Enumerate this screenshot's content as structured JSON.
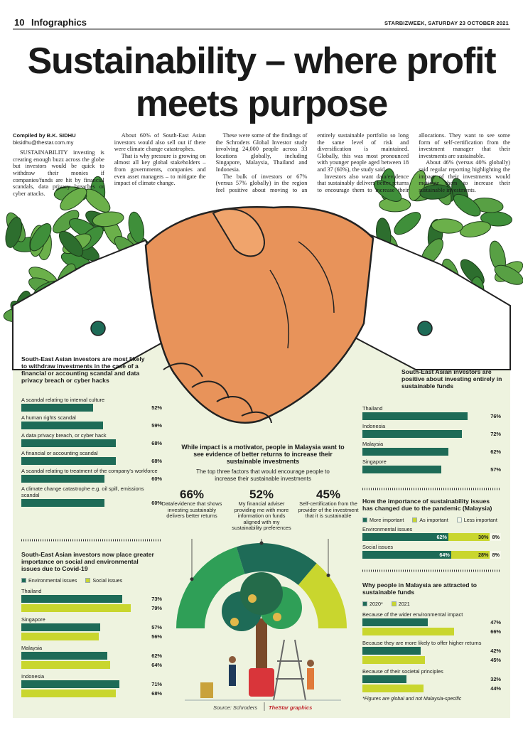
{
  "header": {
    "page": 10,
    "section": "Infographics",
    "dateline": "STARBIZWEEK, SATURDAY 23 OCTOBER 2021"
  },
  "headline": "Sustainability – where profit meets purpose",
  "byline": {
    "author": "Compiled by B.K. SIDHU",
    "email": "bksidhu@thestar.com.my"
  },
  "body": [
    "SUSTAINABILITY investing is creating enough buzz across the globe but investors would be quick to withdraw their monies if companies/funds are hit by financial scandals, data privacy breaches or cyber attacks.",
    "About 60% of South-East Asian investors would also sell out if there were climate change catastrophes.",
    "That is why pressure is growing on almost all key global stakeholders – from governments, companies and even asset managers – to mitigate the impact of climate change.",
    "These were some of the findings of the Schroders Global Investor study involving 24,000 people across 33 locations globally, including Singapore, Malaysia, Thailand and Indonesia.",
    "The bulk of investors or 67% (versus 57% globally) in the region feel positive about moving to an entirely sustainable portfolio so long the same level of risk and diversification is maintained. Globally, this was most pronounced with younger people aged between 18 and 37 (60%), the study said.",
    "Investors also want data/evidence that sustainably delivers better returns to encourage them to increase their allocations. They want to see some form of self-certification from the investment manager that their investments are sustainable.",
    "About 46% (versus 40% globally) said regular reporting highlighting the impact of their investments would motivate them to increase their sustainable investments."
  ],
  "chart_data": [
    {
      "type": "bar",
      "title": "South-East Asian investors are most likely to withdraw investments in the case of a financial or accounting scandal and data privacy breach or cyber hacks",
      "categories": [
        "A scandal relating to internal culture",
        "A human rights scandal",
        "A data privacy breach, or cyber hack",
        "A financial or accounting scandal",
        "A scandal relating to treatment of the company's workforce",
        "A climate change catastrophe e.g. oil spill, emissions scandal"
      ],
      "values": [
        52,
        59,
        68,
        68,
        60,
        60
      ],
      "value_labels": [
        "52%",
        "59%",
        "68%",
        "68%",
        "60%",
        "60%"
      ],
      "color": "#1e6b57"
    },
    {
      "type": "bar",
      "title": "South-East Asian investors now place greater importance on social and environmental issues due to Covid-19",
      "categories": [
        "Thailand",
        "Singapore",
        "Malaysia",
        "Indonesia"
      ],
      "series": [
        {
          "name": "Environmental issues",
          "color": "#1e6b57",
          "values": [
            73,
            57,
            62,
            71
          ],
          "value_labels": [
            "73%",
            "57%",
            "62%",
            "71%"
          ]
        },
        {
          "name": "Social issues",
          "color": "#c9d62e",
          "values": [
            79,
            56,
            64,
            68
          ],
          "value_labels": [
            "79%",
            "56%",
            "64%",
            "68%"
          ]
        }
      ]
    },
    {
      "type": "gauge",
      "title": "While impact is a motivator, people in Malaysia want to see evidence of better returns to increase their sustainable investments",
      "subtitle": "The top three factors that would encourage people to increase their sustainable investments",
      "categories": [
        "Data/evidence that shows investing sustainably delivers better returns",
        "My financial adviser providing me with more information on funds aligned with my sustainability preferences",
        "Self-certification from the provider of the investment that it is sustainable"
      ],
      "values": [
        66,
        52,
        45
      ],
      "value_labels": [
        "66%",
        "52%",
        "45%"
      ],
      "colors": [
        "#2f9f57",
        "#1e6b57",
        "#c9d62e"
      ]
    },
    {
      "type": "bar",
      "title": "South-East Asian investors are positive about investing entirely in sustainable funds",
      "categories": [
        "Thailand",
        "Indonesia",
        "Malaysia",
        "Singapore"
      ],
      "values": [
        76,
        72,
        62,
        57
      ],
      "value_labels": [
        "76%",
        "72%",
        "62%",
        "57%"
      ],
      "color": "#1e6b57"
    },
    {
      "type": "stacked-bar",
      "title": "How the importance of sustainability issues has changed due to the pandemic (Malaysia)",
      "categories": [
        "Environmental issues",
        "Social issues"
      ],
      "series": [
        {
          "name": "More important",
          "color": "#1e6b57",
          "values": [
            62,
            64
          ],
          "value_labels": [
            "62%",
            "64%"
          ]
        },
        {
          "name": "As important",
          "color": "#c9d62e",
          "values": [
            30,
            28
          ],
          "value_labels": [
            "30%",
            "28%"
          ]
        },
        {
          "name": "Less important",
          "color": "#f6f8ea",
          "values": [
            8,
            8
          ],
          "value_labels": [
            "8%",
            "8%"
          ]
        }
      ]
    },
    {
      "type": "bar",
      "title": "Why people in Malaysia are attracted to sustainable funds",
      "categories": [
        "Because of the wider environmental impact",
        "Because they are more likely to offer higher returns",
        "Because of their societal principles"
      ],
      "series": [
        {
          "name": "2020*",
          "color": "#1e6b57",
          "values": [
            47,
            42,
            32
          ],
          "value_labels": [
            "47%",
            "42%",
            "32%"
          ]
        },
        {
          "name": "2021",
          "color": "#c9d62e",
          "values": [
            66,
            45,
            44
          ],
          "value_labels": [
            "66%",
            "45%",
            "44%"
          ]
        }
      ],
      "note": "*Figures are global and not Malaysia-specific"
    }
  ],
  "source": "Source: Schroders",
  "credit": "TheStar graphics"
}
